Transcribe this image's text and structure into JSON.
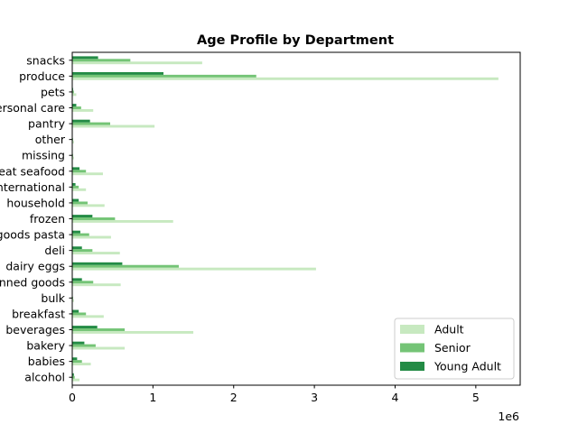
{
  "chart_data": {
    "type": "bar",
    "orientation": "horizontal",
    "title": "Age Profile by Department",
    "xlabel": "",
    "ylabel": "",
    "x_scale_label": "1e6",
    "xlim": [
      0,
      5.55
    ],
    "x_ticks": [
      "0",
      "1",
      "2",
      "3",
      "4",
      "5"
    ],
    "grid": false,
    "legend_position": "lower right",
    "categories": [
      "alcohol",
      "babies",
      "bakery",
      "beverages",
      "breakfast",
      "bulk",
      "canned goods",
      "dairy eggs",
      "deli",
      "dry goods pasta",
      "frozen",
      "household",
      "international",
      "meat seafood",
      "missing",
      "other",
      "pantry",
      "personal care",
      "pets",
      "produce",
      "snacks"
    ],
    "series": [
      {
        "name": "Adult",
        "color": "#c7e9c0",
        "values": [
          0.09,
          0.23,
          0.65,
          1.5,
          0.39,
          0.02,
          0.6,
          3.02,
          0.59,
          0.48,
          1.25,
          0.4,
          0.17,
          0.38,
          0.02,
          0.02,
          1.02,
          0.26,
          0.05,
          5.28,
          1.61
        ]
      },
      {
        "name": "Senior",
        "color": "#74c476",
        "values": [
          0.03,
          0.12,
          0.29,
          0.65,
          0.17,
          0.01,
          0.26,
          1.32,
          0.25,
          0.21,
          0.53,
          0.19,
          0.08,
          0.17,
          0.01,
          0.01,
          0.47,
          0.11,
          0.02,
          2.28,
          0.72
        ]
      },
      {
        "name": "Young Adult",
        "color": "#238b45",
        "values": [
          0.02,
          0.06,
          0.15,
          0.31,
          0.08,
          0.005,
          0.12,
          0.62,
          0.12,
          0.1,
          0.25,
          0.08,
          0.04,
          0.09,
          0.005,
          0.005,
          0.22,
          0.05,
          0.01,
          1.13,
          0.32
        ]
      }
    ]
  }
}
